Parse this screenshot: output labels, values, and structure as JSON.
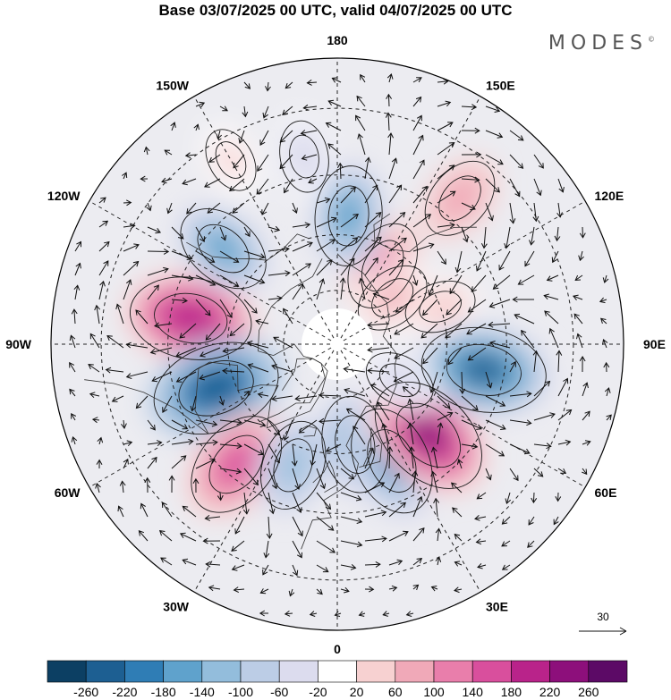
{
  "title": "Base 03/07/2025 00 UTC, valid 04/07/2025 00 UTC",
  "brand": "MODES",
  "brand_mark": "©",
  "map": {
    "projection": "north-polar-stereographic",
    "longitude_labels": [
      {
        "text": "180",
        "lon": 180
      },
      {
        "text": "150E",
        "lon": 150
      },
      {
        "text": "120E",
        "lon": 120
      },
      {
        "text": "90E",
        "lon": 90
      },
      {
        "text": "60E",
        "lon": 60
      },
      {
        "text": "30E",
        "lon": 30
      },
      {
        "text": "0",
        "lon": 0
      },
      {
        "text": "30W",
        "lon": -30
      },
      {
        "text": "60W",
        "lon": -60
      },
      {
        "text": "90W",
        "lon": -90
      },
      {
        "text": "120W",
        "lon": -120
      },
      {
        "text": "150W",
        "lon": -150
      }
    ],
    "latitude_circles": [
      30,
      45,
      60,
      75
    ],
    "vector_reference": "30",
    "anomalies": [
      {
        "lon": -100,
        "lat": 50,
        "value": 220
      },
      {
        "lon": -70,
        "lat": 55,
        "value": -240
      },
      {
        "lon": -40,
        "lat": 48,
        "value": 180
      },
      {
        "lon": -20,
        "lat": 55,
        "value": -120
      },
      {
        "lon": 10,
        "lat": 62,
        "value": -140
      },
      {
        "lon": 25,
        "lat": 55,
        "value": -180
      },
      {
        "lon": 45,
        "lat": 55,
        "value": 230
      },
      {
        "lon": 80,
        "lat": 50,
        "value": -230
      },
      {
        "lon": 150,
        "lat": 65,
        "value": 120
      },
      {
        "lon": 175,
        "lat": 55,
        "value": -150
      },
      {
        "lon": -130,
        "lat": 50,
        "value": -140
      },
      {
        "lon": 140,
        "lat": 40,
        "value": 100
      },
      {
        "lon": -170,
        "lat": 40,
        "value": -60
      },
      {
        "lon": 110,
        "lat": 60,
        "value": 60
      },
      {
        "lon": -150,
        "lat": 35,
        "value": 40
      },
      {
        "lon": 130,
        "lat": 70,
        "value": 80
      },
      {
        "lon": 60,
        "lat": 70,
        "value": -60
      }
    ]
  },
  "colorbar": {
    "colors": [
      "#0c3f63",
      "#1d5f92",
      "#2f7db5",
      "#5fa2cc",
      "#93bddc",
      "#bccde6",
      "#dcdcee",
      "#ffffff",
      "#f7d1d1",
      "#f0a9b8",
      "#e97eab",
      "#d94f9d",
      "#b9238a",
      "#8d0f7b",
      "#5c0a66"
    ],
    "labels": [
      "-260",
      "-220",
      "-180",
      "-140",
      "-100",
      "-60",
      "-20",
      "20",
      "60",
      "100",
      "140",
      "180",
      "220",
      "260"
    ]
  }
}
